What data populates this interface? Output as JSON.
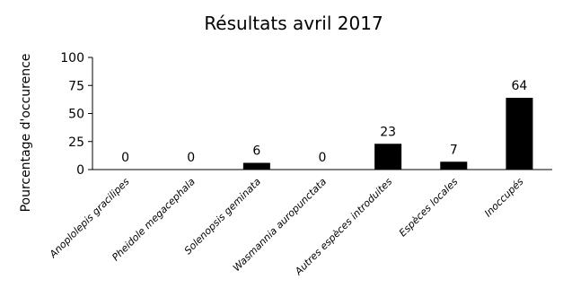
{
  "chart_data": {
    "type": "bar",
    "title": "Résultats avril 2017",
    "xlabel": "",
    "ylabel": "Pourcentage d'occurence",
    "ylim": [
      0,
      100
    ],
    "yticks": [
      0,
      25,
      50,
      75,
      100
    ],
    "grid": false,
    "legend": "none",
    "categories": [
      "Anoplolepis gracilipes",
      "Pheidole megacephala",
      "Solenopsis geminata",
      "Wasmannia auropunctata",
      "Autres espèces introduites",
      "Espèces locales",
      "Inoccupés"
    ],
    "values": [
      0,
      0,
      6,
      0,
      23,
      7,
      64
    ],
    "bar_color": "#000000"
  }
}
